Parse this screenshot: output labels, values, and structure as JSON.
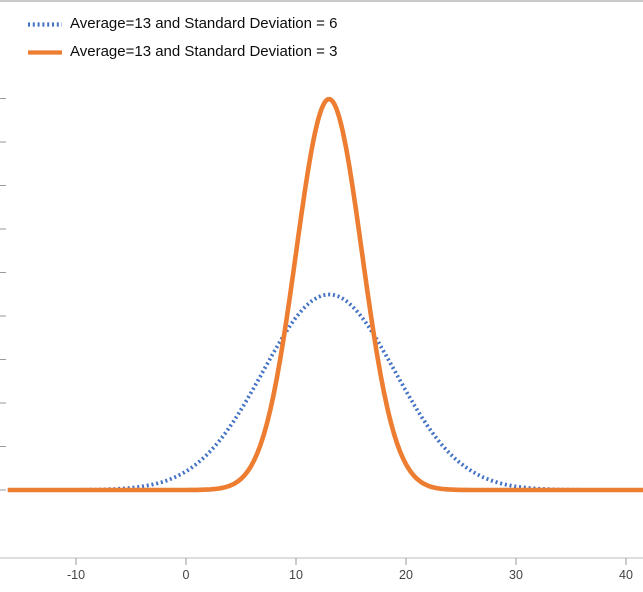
{
  "chart_data": {
    "type": "line",
    "title": "",
    "xlabel": "",
    "ylabel": "",
    "x_ticks": [
      "-10",
      "0",
      "10",
      "20",
      "30",
      "40"
    ],
    "x_tick_values": [
      -10,
      0,
      10,
      20,
      30,
      40
    ],
    "x_range": [
      -16.2,
      41.6
    ],
    "y_range": [
      0,
      0.155
    ],
    "grid": false,
    "legend_position": "top-left",
    "axis_color": "#c9c9c9",
    "tick_color": "#9a9a9a",
    "tick_label_color": "#444444",
    "series": [
      {
        "name": "Average=13 and Standard Deviation = 6",
        "distribution": "normal",
        "mean": 13,
        "sd": 6,
        "peak_x": 13,
        "peak_y": 0.0665,
        "color": "#4472C4",
        "style": "dotted"
      },
      {
        "name": "Average=13 and Standard Deviation = 3",
        "distribution": "normal",
        "mean": 13,
        "sd": 3,
        "peak_x": 13,
        "peak_y": 0.133,
        "color": "#ED7D31",
        "style": "solid"
      }
    ]
  }
}
